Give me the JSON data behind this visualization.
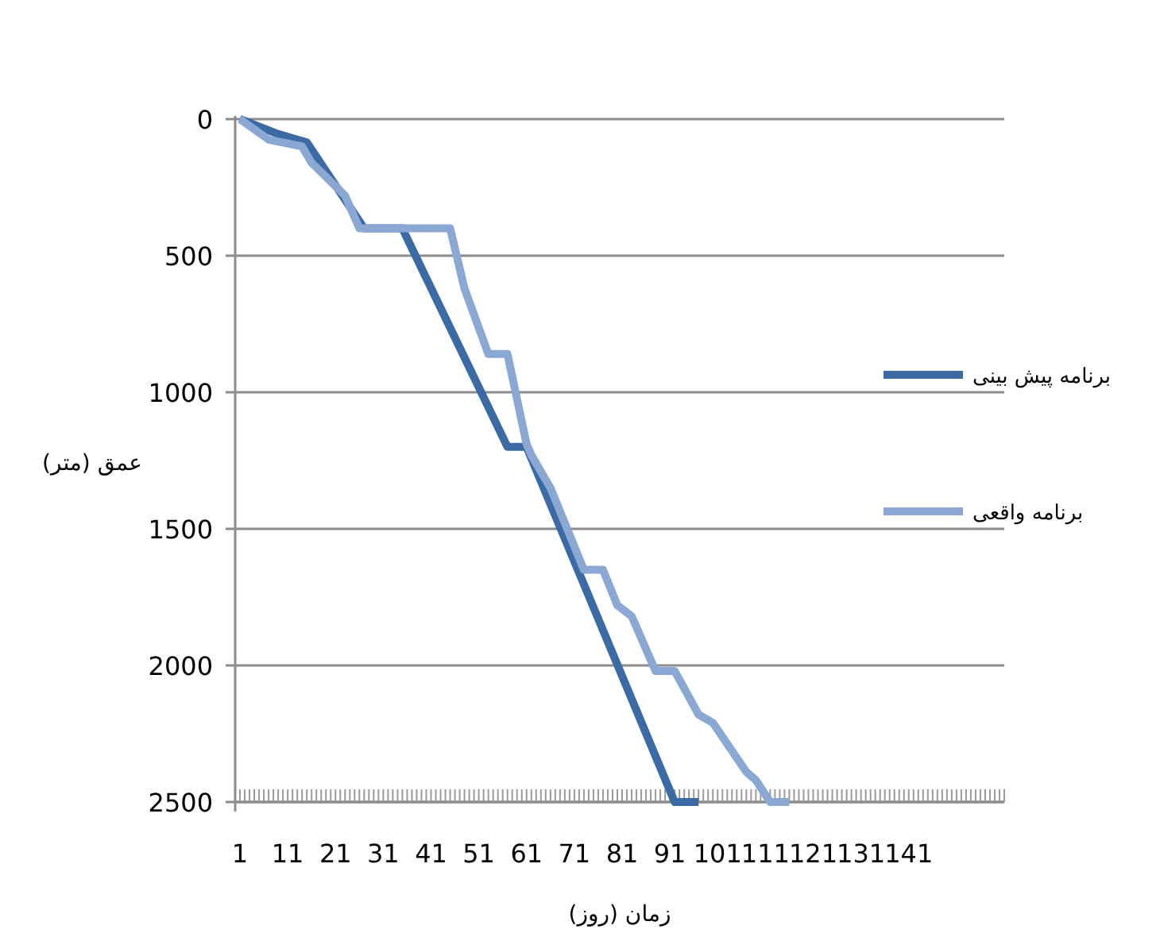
{
  "chart_data": {
    "type": "line",
    "xlabel": "زمان (روز)",
    "ylabel": "عمق (متر)",
    "xlim": [
      0,
      161
    ],
    "xticks": [
      1,
      11,
      21,
      31,
      41,
      51,
      61,
      71,
      81,
      91,
      101,
      111,
      121,
      131,
      141
    ],
    "ylim": [
      2500,
      0
    ],
    "yticks": [
      0,
      500,
      1000,
      1500,
      2000,
      2500
    ],
    "grid": "y",
    "legend": "right",
    "marker": "none",
    "line_style": "solid",
    "series": [
      {
        "name": "برنامه پیش بینی",
        "color": "#3c6aa5",
        "x": [
          1,
          9,
          15,
          27,
          35,
          57,
          61,
          92,
          97
        ],
        "values": [
          0,
          55,
          85,
          400,
          400,
          1200,
          1200,
          2500,
          2500
        ]
      },
      {
        "name": "برنامه واقعی",
        "color": "#8aa8d3",
        "x": [
          1,
          7,
          14,
          16,
          23,
          26,
          45,
          48,
          53,
          57,
          61,
          62,
          66,
          73,
          77,
          80,
          83,
          88,
          92,
          97,
          100,
          107,
          109,
          112,
          116
        ],
        "values": [
          0,
          75,
          100,
          160,
          280,
          400,
          400,
          620,
          860,
          860,
          1190,
          1230,
          1350,
          1650,
          1650,
          1780,
          1820,
          2020,
          2020,
          2180,
          2210,
          2390,
          2420,
          2500,
          2500
        ]
      }
    ]
  }
}
